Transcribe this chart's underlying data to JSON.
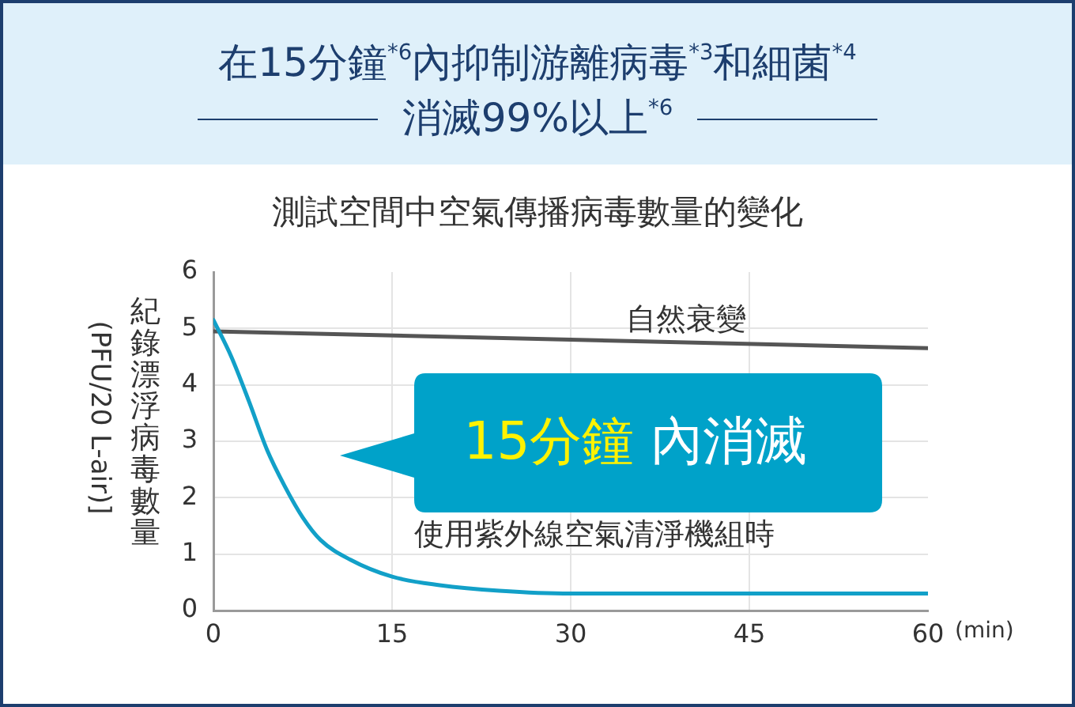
{
  "chart_data": {
    "type": "line",
    "title": "在15分鐘$^{*6}$內抑制游離病毒$^{*3}$和細菌$^{*4}$\n消滅99%以上$^{*6}$",
    "subtitle": "測試空間中空氣傳播病毒數量的變化",
    "xlabel": "(min)",
    "ylabel": "紀錄漂浮病毒數量\n(PFU/20 L-air)]",
    "annotations": [
      "15分鐘 內消滅"
    ],
    "series": [
      {
        "name": "自然衰變",
        "color": "#555555",
        "x": [
          0,
          60
        ],
        "values": [
          4.95,
          4.65
        ]
      },
      {
        "name": "使用紫外線空氣清淨機組時",
        "color": "#12a0c8",
        "x": [
          0,
          1.5,
          3,
          4.5,
          6,
          7.5,
          9,
          11.5,
          15,
          19,
          24,
          30,
          45,
          60
        ],
        "values": [
          5.15,
          4.5,
          3.7,
          2.85,
          2.2,
          1.65,
          1.25,
          0.9,
          0.6,
          0.45,
          0.35,
          0.3,
          0.3,
          0.3
        ]
      }
    ],
    "xlim": [
      0,
      60
    ],
    "xticks": [
      0,
      15,
      30,
      45,
      60
    ],
    "ylim": [
      0,
      6
    ],
    "yticks": [
      0,
      1,
      2,
      3,
      4,
      5,
      6
    ],
    "grid": true
  }
}
